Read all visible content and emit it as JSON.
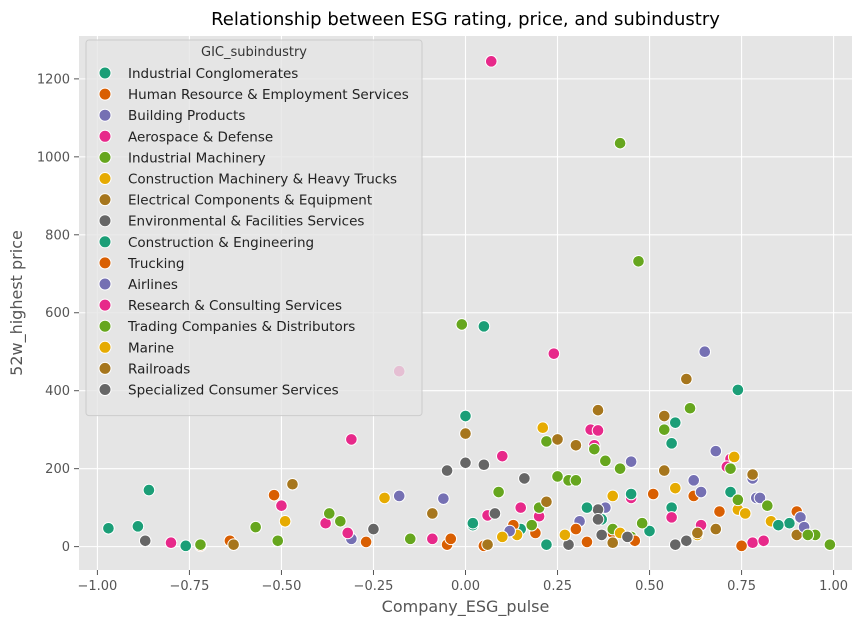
{
  "chart_data": {
    "type": "scatter",
    "title": "Relationship between ESG rating, price, and subindustry",
    "xlabel": "Company_ESG_pulse",
    "ylabel": "52w_highest price",
    "xlim": [
      -1.05,
      1.05
    ],
    "ylim": [
      -60,
      1310
    ],
    "x_ticks": [
      -1.0,
      -0.75,
      -0.5,
      -0.25,
      0.0,
      0.25,
      0.5,
      0.75,
      1.0
    ],
    "x_tick_labels": [
      "−1.00",
      "−0.75",
      "−0.50",
      "−0.25",
      "0.00",
      "0.25",
      "0.50",
      "0.75",
      "1.00"
    ],
    "y_ticks": [
      0,
      200,
      400,
      600,
      800,
      1000,
      1200
    ],
    "y_tick_labels": [
      "0",
      "200",
      "400",
      "600",
      "800",
      "1000",
      "1200"
    ],
    "grid": true,
    "plot_background": "#e5e5e5",
    "grid_color": "#ffffff",
    "legend": {
      "title": "GIC_subindustry",
      "placement": "top-left"
    },
    "series": [
      {
        "name": "Industrial Conglomerates",
        "color": "#1b9e77",
        "points": [
          [
            -0.97,
            47
          ],
          [
            -0.89,
            52
          ],
          [
            -0.86,
            145
          ],
          [
            -0.76,
            2
          ],
          [
            0.0,
            335
          ],
          [
            0.05,
            565
          ],
          [
            0.56,
            265
          ],
          [
            0.57,
            318
          ],
          [
            0.74,
            402
          ],
          [
            0.72,
            140
          ],
          [
            0.88,
            60
          ],
          [
            0.15,
            45
          ],
          [
            0.37,
            70
          ],
          [
            0.02,
            55
          ]
        ]
      },
      {
        "name": "Human Resource & Employment Services",
        "color": "#d95f02",
        "points": [
          [
            -0.72,
            2
          ],
          [
            -0.52,
            132
          ],
          [
            -0.27,
            12
          ],
          [
            0.05,
            2
          ],
          [
            0.13,
            55
          ],
          [
            0.33,
            12
          ],
          [
            0.51,
            135
          ],
          [
            0.62,
            130
          ],
          [
            0.69,
            90
          ],
          [
            0.9,
            90
          ],
          [
            -0.05,
            5
          ],
          [
            0.4,
            35
          ]
        ]
      },
      {
        "name": "Building Products",
        "color": "#7570b3",
        "points": [
          [
            0.65,
            500
          ],
          [
            0.45,
            218
          ],
          [
            0.78,
            175
          ],
          [
            0.79,
            125
          ],
          [
            0.68,
            245
          ],
          [
            0.91,
            75
          ],
          [
            0.38,
            100
          ],
          [
            -0.06,
            123
          ],
          [
            0.31,
            65
          ],
          [
            -0.18,
            130
          ]
        ]
      },
      {
        "name": "Aerospace & Defense",
        "color": "#e7298a",
        "points": [
          [
            0.07,
            1245
          ],
          [
            0.24,
            495
          ],
          [
            -0.31,
            275
          ],
          [
            -0.18,
            450
          ],
          [
            0.34,
            300
          ],
          [
            0.36,
            298
          ],
          [
            0.06,
            80
          ],
          [
            -0.38,
            60
          ],
          [
            0.1,
            232
          ],
          [
            0.72,
            225
          ],
          [
            0.71,
            205
          ],
          [
            0.45,
            125
          ],
          [
            -0.5,
            105
          ],
          [
            0.2,
            78
          ],
          [
            0.35,
            260
          ],
          [
            0.78,
            10
          ]
        ]
      },
      {
        "name": "Industrial Machinery",
        "color": "#66a61e",
        "points": [
          [
            0.42,
            1035
          ],
          [
            0.47,
            732
          ],
          [
            -0.01,
            570
          ],
          [
            0.61,
            355
          ],
          [
            0.54,
            300
          ],
          [
            0.22,
            270
          ],
          [
            0.35,
            250
          ],
          [
            0.38,
            220
          ],
          [
            0.42,
            200
          ],
          [
            0.2,
            100
          ],
          [
            0.28,
            170
          ],
          [
            0.45,
            25
          ],
          [
            -0.57,
            50
          ],
          [
            0.72,
            200
          ],
          [
            0.95,
            30
          ],
          [
            0.99,
            5
          ]
        ]
      },
      {
        "name": "Construction Machinery & Heavy Trucks",
        "color": "#e6ab02",
        "points": [
          [
            0.21,
            305
          ],
          [
            -0.22,
            125
          ],
          [
            0.73,
            230
          ],
          [
            0.74,
            95
          ],
          [
            0.83,
            65
          ],
          [
            0.57,
            150
          ],
          [
            0.4,
            130
          ],
          [
            0.14,
            30
          ],
          [
            -0.49,
            65
          ],
          [
            0.3,
            45
          ]
        ]
      },
      {
        "name": "Electrical Components & Equipment",
        "color": "#a6761d",
        "points": [
          [
            0.6,
            430
          ],
          [
            0.36,
            350
          ],
          [
            0.25,
            275
          ],
          [
            -0.47,
            160
          ],
          [
            0.54,
            335
          ],
          [
            0.0,
            290
          ],
          [
            0.54,
            195
          ],
          [
            0.78,
            185
          ],
          [
            0.3,
            260
          ],
          [
            -0.09,
            85
          ],
          [
            0.9,
            30
          ]
        ]
      },
      {
        "name": "Environmental & Facilities Services",
        "color": "#666666",
        "points": [
          [
            0.16,
            175
          ],
          [
            -0.05,
            195
          ],
          [
            0.05,
            210
          ],
          [
            0.0,
            215
          ],
          [
            -0.87,
            15
          ],
          [
            -0.25,
            45
          ],
          [
            0.36,
            95
          ],
          [
            0.28,
            5
          ],
          [
            0.6,
            15
          ]
        ]
      },
      {
        "name": "Construction & Engineering",
        "color": "#1b9e77",
        "points": [
          [
            0.45,
            135
          ],
          [
            0.33,
            100
          ],
          [
            0.56,
            100
          ],
          [
            0.22,
            5
          ],
          [
            0.5,
            40
          ],
          [
            0.02,
            60
          ],
          [
            0.85,
            55
          ]
        ]
      },
      {
        "name": "Trucking",
        "color": "#d95f02",
        "points": [
          [
            -0.64,
            15
          ],
          [
            0.19,
            35
          ],
          [
            0.3,
            45
          ],
          [
            -0.04,
            20
          ],
          [
            0.46,
            15
          ],
          [
            0.75,
            2
          ]
        ]
      },
      {
        "name": "Airlines",
        "color": "#7570b3",
        "points": [
          [
            -0.31,
            20
          ],
          [
            0.62,
            170
          ],
          [
            0.64,
            140
          ],
          [
            0.8,
            125
          ],
          [
            0.92,
            50
          ],
          [
            0.12,
            40
          ]
        ]
      },
      {
        "name": "Research & Consulting Services",
        "color": "#e7298a",
        "points": [
          [
            -0.09,
            20
          ],
          [
            -0.32,
            35
          ],
          [
            0.15,
            100
          ],
          [
            0.56,
            75
          ],
          [
            0.64,
            55
          ],
          [
            0.81,
            15
          ],
          [
            -0.8,
            10
          ]
        ]
      },
      {
        "name": "Trading Companies & Distributors",
        "color": "#66a61e",
        "points": [
          [
            -0.51,
            15
          ],
          [
            -0.37,
            85
          ],
          [
            0.3,
            170
          ],
          [
            0.09,
            140
          ],
          [
            0.4,
            45
          ],
          [
            0.25,
            180
          ],
          [
            0.74,
            120
          ],
          [
            0.82,
            105
          ],
          [
            -0.34,
            65
          ],
          [
            0.18,
            55
          ],
          [
            0.48,
            60
          ],
          [
            -0.15,
            20
          ],
          [
            -0.72,
            5
          ],
          [
            0.93,
            30
          ]
        ]
      },
      {
        "name": "Marine",
        "color": "#e6ab02",
        "points": [
          [
            0.42,
            35
          ],
          [
            0.76,
            85
          ],
          [
            0.27,
            30
          ],
          [
            0.63,
            30
          ],
          [
            0.1,
            25
          ]
        ]
      },
      {
        "name": "Railroads",
        "color": "#a6761d",
        "points": [
          [
            0.4,
            10
          ],
          [
            0.63,
            35
          ],
          [
            0.68,
            45
          ],
          [
            0.22,
            115
          ],
          [
            -0.63,
            5
          ],
          [
            0.06,
            5
          ]
        ]
      },
      {
        "name": "Specialized Consumer Services",
        "color": "#666666",
        "points": [
          [
            0.36,
            70
          ],
          [
            0.37,
            30
          ],
          [
            0.57,
            5
          ],
          [
            0.44,
            25
          ],
          [
            0.08,
            85
          ]
        ]
      }
    ]
  }
}
